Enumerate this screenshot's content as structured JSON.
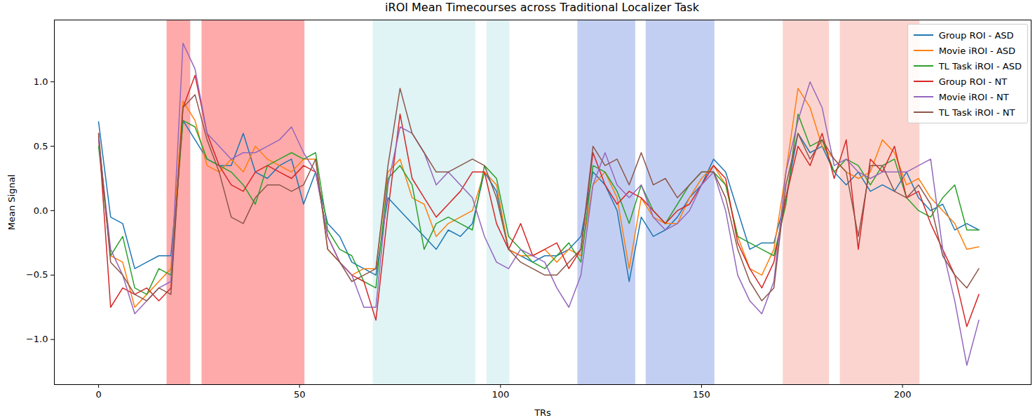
{
  "chart_data": {
    "type": "line",
    "title": "iROI Mean Timecourses across Traditional Localizer Task",
    "x_label": "TRs",
    "y_label": "Mean Signal",
    "xlim": [
      -11,
      232
    ],
    "ylim": [
      -1.35,
      1.48
    ],
    "xticks": [
      0,
      50,
      100,
      150,
      200
    ],
    "yticks": [
      {
        "value": -1,
        "label": "−1.0"
      },
      {
        "value": -0.5,
        "label": "−0.5"
      },
      {
        "value": 0,
        "label": "0.0"
      },
      {
        "value": 0.5,
        "label": "0.5"
      },
      {
        "value": 1,
        "label": "1.0"
      }
    ],
    "legend": "upper right",
    "grid": false,
    "shaded_regions": [
      {
        "start": 17,
        "end": 22.9,
        "color": "#ffaaaa"
      },
      {
        "start": 25.7,
        "end": 51.3,
        "color": "#ffaaaa"
      },
      {
        "start": 68.3,
        "end": 93.8,
        "color": "#e0f3f5"
      },
      {
        "start": 96.6,
        "end": 102.3,
        "color": "#e0f3f5"
      },
      {
        "start": 119.2,
        "end": 133.6,
        "color": "#c3cff2"
      },
      {
        "start": 136.2,
        "end": 153.3,
        "color": "#c3cff2"
      },
      {
        "start": 170.3,
        "end": 181.8,
        "color": "#fcd4cf"
      },
      {
        "start": 184.5,
        "end": 204.3,
        "color": "#fcd4cf"
      }
    ],
    "x": [
      0,
      3,
      6,
      9,
      12,
      15,
      18,
      21,
      24,
      27,
      30,
      33,
      36,
      39,
      42,
      45,
      48,
      51,
      54,
      57,
      60,
      63,
      66,
      69,
      72,
      75,
      78,
      81,
      84,
      87,
      90,
      93,
      96,
      99,
      102,
      105,
      108,
      111,
      114,
      117,
      120,
      123,
      126,
      129,
      132,
      135,
      138,
      141,
      144,
      147,
      150,
      153,
      156,
      159,
      162,
      165,
      168,
      171,
      174,
      177,
      180,
      183,
      186,
      189,
      192,
      195,
      198,
      201,
      204,
      207,
      210,
      213,
      216,
      219
    ],
    "series": [
      {
        "name": "Group ROI - ASD",
        "color": "#1f77b4",
        "values": [
          0.69,
          -0.05,
          -0.1,
          -0.45,
          -0.4,
          -0.35,
          -0.35,
          0.7,
          0.55,
          0.4,
          0.35,
          0.35,
          0.6,
          0.3,
          0.25,
          0.35,
          0.4,
          0.05,
          0.3,
          -0.1,
          -0.2,
          -0.4,
          -0.45,
          -0.5,
          0.1,
          0.0,
          -0.1,
          -0.2,
          -0.3,
          -0.15,
          -0.2,
          -0.1,
          0.3,
          0.15,
          -0.3,
          -0.35,
          -0.4,
          -0.35,
          -0.35,
          -0.3,
          -0.2,
          0.3,
          0.2,
          0.0,
          -0.55,
          -0.05,
          -0.2,
          -0.15,
          -0.05,
          0.1,
          0.2,
          0.4,
          0.3,
          0.0,
          -0.3,
          -0.25,
          -0.25,
          0.1,
          0.6,
          0.45,
          0.5,
          0.3,
          0.2,
          0.3,
          0.15,
          0.2,
          0.15,
          0.3,
          0.1,
          0.0,
          0.05,
          -0.15,
          -0.1,
          -0.15
        ]
      },
      {
        "name": "Movie iROI - ASD",
        "color": "#ff7f0e",
        "values": [
          0.55,
          -0.35,
          -0.4,
          -0.75,
          -0.65,
          -0.55,
          -0.45,
          0.85,
          0.7,
          0.35,
          0.3,
          0.4,
          0.3,
          0.5,
          0.4,
          0.35,
          0.3,
          0.4,
          0.4,
          -0.3,
          -0.4,
          -0.5,
          -0.45,
          -0.45,
          0.3,
          0.4,
          0.1,
          0.05,
          -0.2,
          -0.1,
          -0.05,
          0.0,
          0.3,
          0.2,
          -0.3,
          -0.35,
          -0.35,
          -0.3,
          -0.4,
          -0.3,
          -0.35,
          0.2,
          0.3,
          0.1,
          -0.45,
          0.1,
          -0.05,
          -0.1,
          -0.1,
          0.1,
          0.25,
          0.35,
          0.2,
          -0.2,
          -0.45,
          -0.5,
          -0.3,
          0.3,
          0.95,
          0.8,
          0.5,
          0.4,
          0.3,
          0.25,
          0.3,
          0.55,
          0.45,
          0.2,
          0.25,
          0.1,
          0.0,
          -0.1,
          -0.3,
          -0.28
        ]
      },
      {
        "name": "TL Task iROI - ASD",
        "color": "#2ca02c",
        "values": [
          0.5,
          -0.35,
          -0.2,
          -0.6,
          -0.65,
          -0.45,
          -0.5,
          0.7,
          0.65,
          0.4,
          0.35,
          0.3,
          0.2,
          0.05,
          0.35,
          0.4,
          0.45,
          0.4,
          0.45,
          -0.15,
          -0.3,
          -0.35,
          -0.55,
          -0.6,
          0.25,
          0.35,
          0.2,
          -0.3,
          -0.1,
          -0.05,
          -0.1,
          -0.15,
          0.35,
          0.25,
          -0.2,
          -0.3,
          -0.4,
          -0.45,
          -0.35,
          -0.25,
          -0.4,
          0.35,
          0.3,
          0.15,
          -0.1,
          0.2,
          0.0,
          -0.1,
          0.05,
          0.2,
          0.3,
          0.3,
          0.2,
          -0.2,
          -0.25,
          -0.3,
          -0.35,
          0.05,
          0.75,
          0.5,
          0.55,
          0.3,
          0.4,
          0.35,
          0.2,
          0.35,
          0.4,
          0.1,
          0.0,
          -0.05,
          0.1,
          0.2,
          -0.15,
          -0.15
        ]
      },
      {
        "name": "Group ROI - NT",
        "color": "#d62728",
        "values": [
          0.6,
          -0.75,
          -0.6,
          -0.65,
          -0.6,
          -0.7,
          -0.6,
          0.8,
          1.05,
          0.6,
          0.35,
          0.2,
          0.15,
          0.3,
          0.35,
          0.3,
          0.25,
          0.35,
          0.3,
          -0.2,
          -0.4,
          -0.5,
          -0.55,
          -0.85,
          0.0,
          0.75,
          0.25,
          0.1,
          -0.05,
          0.05,
          0.15,
          0.3,
          0.3,
          -0.1,
          -0.3,
          -0.1,
          -0.35,
          -0.3,
          -0.25,
          -0.45,
          -0.3,
          0.45,
          0.2,
          0.05,
          0.15,
          0.1,
          0.0,
          -0.1,
          0.0,
          0.05,
          0.2,
          0.35,
          0.25,
          -0.25,
          -0.45,
          -0.6,
          -0.4,
          0.1,
          0.5,
          0.35,
          0.6,
          0.25,
          0.55,
          -0.3,
          0.4,
          0.3,
          0.5,
          0.1,
          0.15,
          -0.1,
          -0.3,
          -0.5,
          -0.9,
          -0.65
        ]
      },
      {
        "name": "Movie iROI - NT",
        "color": "#9467bd",
        "values": [
          0.55,
          -0.3,
          -0.5,
          -0.8,
          -0.7,
          -0.6,
          -0.55,
          1.3,
          1.1,
          0.6,
          0.5,
          0.4,
          0.45,
          0.45,
          0.5,
          0.55,
          0.65,
          0.45,
          0.3,
          -0.2,
          -0.4,
          -0.5,
          -0.75,
          -0.75,
          0.2,
          0.65,
          0.6,
          0.45,
          0.2,
          0.3,
          0.2,
          0.1,
          -0.2,
          -0.4,
          -0.45,
          -0.3,
          -0.35,
          -0.4,
          -0.6,
          -0.75,
          -0.5,
          0.2,
          0.45,
          0.2,
          0.1,
          0.2,
          -0.05,
          -0.15,
          -0.1,
          0.0,
          0.2,
          0.3,
          0.0,
          -0.5,
          -0.7,
          -0.8,
          -0.55,
          0.3,
          0.7,
          1.0,
          0.8,
          0.35,
          0.4,
          0.3,
          0.25,
          0.3,
          0.3,
          0.3,
          0.35,
          0.4,
          -0.3,
          -0.7,
          -1.2,
          -0.85
        ]
      },
      {
        "name": "TL Task iROI - NT",
        "color": "#8c564b",
        "values": [
          0.6,
          -0.4,
          -0.5,
          -0.65,
          -0.7,
          -0.6,
          -0.65,
          0.8,
          0.9,
          0.55,
          0.3,
          -0.05,
          -0.1,
          0.1,
          0.2,
          0.2,
          0.15,
          0.2,
          0.4,
          -0.3,
          -0.4,
          -0.55,
          -0.5,
          -0.45,
          0.35,
          0.95,
          0.6,
          0.45,
          0.3,
          0.3,
          0.35,
          0.4,
          0.35,
          0.1,
          -0.3,
          -0.4,
          -0.45,
          -0.5,
          -0.5,
          -0.4,
          -0.3,
          0.5,
          0.35,
          0.4,
          0.2,
          0.45,
          0.2,
          0.25,
          0.1,
          0.2,
          0.3,
          0.3,
          0.1,
          -0.3,
          -0.55,
          -0.7,
          -0.6,
          0.2,
          0.6,
          0.4,
          0.55,
          0.4,
          0.3,
          -0.2,
          0.35,
          0.35,
          0.15,
          0.1,
          0.2,
          0.05,
          -0.35,
          -0.5,
          -0.6,
          -0.45
        ]
      }
    ]
  }
}
